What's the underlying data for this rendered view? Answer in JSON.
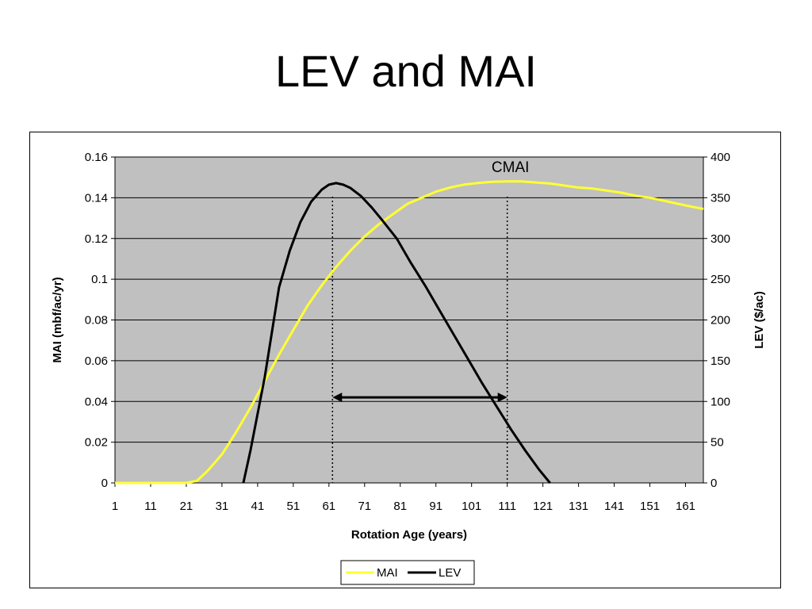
{
  "slide": {
    "title": "LEV and MAI"
  },
  "colors": {
    "plot_bg": "#c0c0c0",
    "mai": "#ffff33",
    "lev": "#000000",
    "grid": "#000000"
  },
  "chart_data": {
    "type": "line",
    "xlabel": "Rotation Age (years)",
    "ylabel_left": "MAI (mbf/ac/yr)",
    "ylabel_right": "LEV ($/ac)",
    "x_ticks": [
      1,
      11,
      21,
      31,
      41,
      51,
      61,
      71,
      81,
      91,
      101,
      111,
      121,
      131,
      141,
      151,
      161
    ],
    "xlim": [
      1,
      166
    ],
    "ylim_left": [
      0,
      0.16
    ],
    "left_ticks": [
      "0",
      "0.02",
      "0.04",
      "0.06",
      "0.08",
      "0.1",
      "0.12",
      "0.14",
      "0.16"
    ],
    "ylim_right": [
      0,
      400
    ],
    "right_ticks": [
      "0",
      "50",
      "100",
      "150",
      "200",
      "250",
      "300",
      "350",
      "400"
    ],
    "grid": true,
    "legend_position": "bottom",
    "series": [
      {
        "name": "MAI",
        "axis": "left",
        "color": "#ffff33",
        "points": [
          [
            1,
            0
          ],
          [
            21,
            0
          ],
          [
            24,
            0.001
          ],
          [
            27,
            0.006
          ],
          [
            31,
            0.014
          ],
          [
            35,
            0.025
          ],
          [
            39,
            0.037
          ],
          [
            43,
            0.05
          ],
          [
            47,
            0.063
          ],
          [
            51,
            0.075
          ],
          [
            55,
            0.087
          ],
          [
            59,
            0.097
          ],
          [
            63,
            0.106
          ],
          [
            67,
            0.114
          ],
          [
            71,
            0.121
          ],
          [
            75,
            0.127
          ],
          [
            79,
            0.132
          ],
          [
            83,
            0.137
          ],
          [
            87,
            0.14
          ],
          [
            91,
            0.143
          ],
          [
            95,
            0.145
          ],
          [
            99,
            0.1465
          ],
          [
            103,
            0.1473
          ],
          [
            107,
            0.1478
          ],
          [
            111,
            0.148
          ],
          [
            115,
            0.148
          ],
          [
            119,
            0.1475
          ],
          [
            123,
            0.147
          ],
          [
            127,
            0.146
          ],
          [
            131,
            0.145
          ],
          [
            135,
            0.1445
          ],
          [
            139,
            0.1435
          ],
          [
            143,
            0.1425
          ],
          [
            147,
            0.141
          ],
          [
            151,
            0.14
          ],
          [
            155,
            0.1385
          ],
          [
            159,
            0.137
          ],
          [
            163,
            0.1355
          ],
          [
            166,
            0.1345
          ]
        ]
      },
      {
        "name": "LEV",
        "axis": "right",
        "color": "#000000",
        "points": [
          [
            37,
            0
          ],
          [
            39,
            40
          ],
          [
            41,
            85
          ],
          [
            43,
            130
          ],
          [
            45,
            185
          ],
          [
            47,
            240
          ],
          [
            50,
            285
          ],
          [
            53,
            320
          ],
          [
            56,
            345
          ],
          [
            59,
            360
          ],
          [
            61,
            366
          ],
          [
            63,
            368
          ],
          [
            65,
            366
          ],
          [
            67,
            362
          ],
          [
            70,
            352
          ],
          [
            73,
            338
          ],
          [
            76,
            322
          ],
          [
            80,
            300
          ],
          [
            84,
            270
          ],
          [
            88,
            242
          ],
          [
            92,
            212
          ],
          [
            96,
            182
          ],
          [
            100,
            152
          ],
          [
            104,
            122
          ],
          [
            108,
            94
          ],
          [
            112,
            66
          ],
          [
            116,
            40
          ],
          [
            120,
            16
          ],
          [
            123,
            0
          ]
        ]
      }
    ],
    "annotations": {
      "label": "CMAI",
      "vlines_x": [
        62,
        111
      ],
      "arrow": {
        "x_from": 62,
        "x_to": 111,
        "y_left": 0.042
      }
    }
  }
}
